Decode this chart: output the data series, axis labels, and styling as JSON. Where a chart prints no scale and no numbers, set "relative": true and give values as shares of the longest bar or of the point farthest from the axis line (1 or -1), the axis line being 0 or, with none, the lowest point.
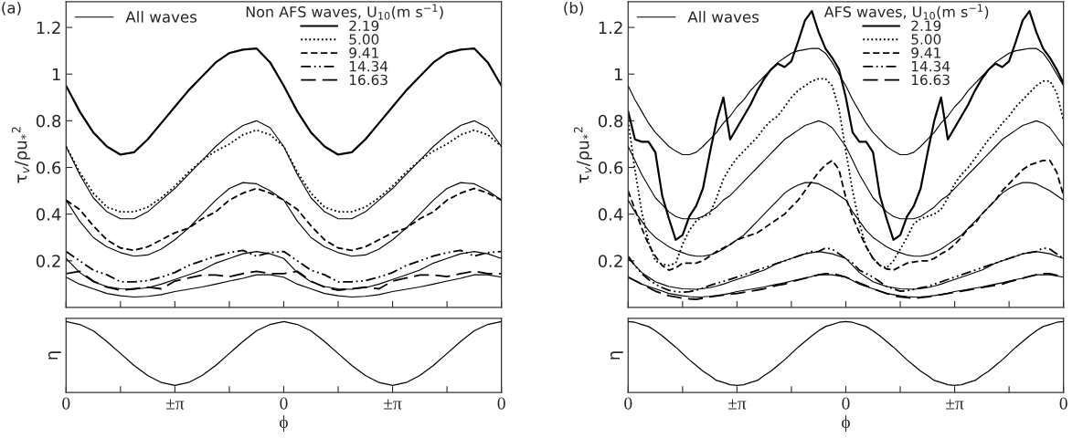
{
  "chart_data": [
    {
      "type": "line",
      "title": "(a)",
      "ylabel": "τ$_{v}$/ρu$_{*}$$^{2}$",
      "legend_title": "Non AFS waves, U$_{10}$(m s$^{−1}$)",
      "legend": "top",
      "categories": [
        null,
        null,
        null,
        null,
        null,
        null,
        null,
        null,
        null,
        null,
        null,
        null,
        null,
        null,
        null,
        null,
        null,
        null,
        null,
        null,
        null,
        null,
        null,
        null,
        null,
        null,
        null,
        null,
        null,
        null,
        null,
        null,
        null
      ],
      "ylim": [
        0,
        1.31
      ],
      "yticks": [
        0.2,
        0.4,
        0.6,
        0.8,
        1,
        1.2
      ],
      "tick_labels": "y",
      "series": [
        {
          "name": "All waves",
          "color": "#000000",
          "line_style": "solid",
          "values": [
            0.69,
            0.57,
            0.47,
            0.41,
            0.38,
            0.38,
            0.41,
            0.46,
            0.51,
            0.57,
            0.63,
            0.69,
            0.74,
            0.78,
            0.8,
            0.77,
            0.69,
            0.57,
            0.47,
            0.41,
            0.38,
            0.38,
            0.41,
            0.46,
            0.51,
            0.57,
            0.63,
            0.69,
            0.74,
            0.78,
            0.8,
            0.77,
            0.69
          ]
        },
        {
          "color": "#000000",
          "line_style": "solid",
          "values": [
            null,
            null,
            null,
            null,
            null,
            null,
            null,
            null,
            null,
            null,
            null,
            null,
            null,
            null,
            null,
            null,
            null,
            null,
            null,
            null,
            null,
            null,
            null,
            null,
            null,
            null,
            null,
            null,
            null,
            null,
            null,
            null,
            null
          ]
        },
        {
          "color": "#000000",
          "line_style": "solid",
          "values": [
            0.46,
            0.37,
            0.3,
            0.26,
            0.235,
            0.22,
            0.225,
            0.25,
            0.29,
            0.34,
            0.4,
            0.46,
            0.51,
            0.535,
            0.53,
            0.5,
            0.46,
            0.37,
            0.3,
            0.26,
            0.235,
            0.22,
            0.225,
            0.25,
            0.29,
            0.34,
            0.4,
            0.46,
            0.51,
            0.535,
            0.53,
            0.5,
            0.46
          ]
        },
        {
          "color": "#000000",
          "line_style": "solid",
          "values": [
            0.21,
            0.15,
            0.11,
            0.09,
            0.08,
            0.078,
            0.085,
            0.1,
            0.12,
            0.14,
            0.16,
            0.19,
            0.21,
            0.23,
            0.24,
            0.23,
            0.21,
            0.15,
            0.11,
            0.09,
            0.08,
            0.078,
            0.085,
            0.1,
            0.12,
            0.14,
            0.16,
            0.19,
            0.21,
            0.23,
            0.24,
            0.23,
            0.21
          ]
        },
        {
          "color": "#000000",
          "line_style": "solid",
          "values": [
            0.13,
            0.1,
            0.08,
            0.06,
            0.05,
            0.045,
            0.048,
            0.055,
            0.068,
            0.078,
            0.088,
            0.1,
            0.113,
            0.125,
            0.14,
            0.14,
            0.13,
            0.1,
            0.08,
            0.06,
            0.05,
            0.045,
            0.048,
            0.055,
            0.068,
            0.078,
            0.088,
            0.1,
            0.113,
            0.125,
            0.14,
            0.14,
            0.13
          ]
        },
        {
          "name": "2.19",
          "color": "#000000",
          "line_style": "solid",
          "values": [
            0.95,
            0.84,
            0.75,
            0.69,
            0.655,
            0.665,
            0.72,
            0.79,
            0.86,
            0.93,
            0.99,
            1.05,
            1.09,
            1.105,
            1.11,
            1.05,
            0.95,
            0.84,
            0.75,
            0.69,
            0.655,
            0.665,
            0.72,
            0.79,
            0.86,
            0.93,
            0.99,
            1.05,
            1.09,
            1.105,
            1.11,
            1.05,
            0.95
          ]
        },
        {
          "name": "5.00",
          "color": "#000000",
          "line_style": "dotted",
          "values": [
            0.69,
            0.58,
            0.49,
            0.43,
            0.41,
            0.41,
            0.43,
            0.47,
            0.52,
            0.58,
            0.63,
            0.67,
            0.7,
            0.74,
            0.76,
            0.74,
            0.69,
            0.58,
            0.49,
            0.43,
            0.41,
            0.41,
            0.43,
            0.47,
            0.52,
            0.58,
            0.63,
            0.67,
            0.7,
            0.74,
            0.76,
            0.74,
            0.69
          ]
        },
        {
          "name": "9.41",
          "color": "#000000",
          "line_style": "dashed",
          "values": [
            0.46,
            0.42,
            0.35,
            0.29,
            0.255,
            0.245,
            0.26,
            0.29,
            0.32,
            0.34,
            0.38,
            0.41,
            0.46,
            0.49,
            0.51,
            0.49,
            0.46,
            0.42,
            0.35,
            0.29,
            0.255,
            0.245,
            0.26,
            0.29,
            0.32,
            0.34,
            0.38,
            0.41,
            0.46,
            0.49,
            0.51,
            0.49,
            0.46
          ]
        },
        {
          "name": "14.34",
          "color": "#000000",
          "line_style": "dashdotdot",
          "values": [
            0.24,
            0.2,
            0.16,
            0.14,
            0.11,
            0.11,
            0.115,
            0.13,
            0.15,
            0.18,
            0.2,
            0.22,
            0.235,
            0.245,
            0.22,
            0.235,
            0.24,
            0.2,
            0.16,
            0.14,
            0.11,
            0.11,
            0.115,
            0.13,
            0.15,
            0.18,
            0.2,
            0.22,
            0.235,
            0.245,
            0.22,
            0.235,
            0.24
          ]
        },
        {
          "name": "16.63",
          "color": "#000000",
          "line_style": "longdash",
          "values": [
            0.145,
            0.155,
            0.113,
            0.087,
            0.074,
            0.08,
            0.087,
            0.08,
            0.113,
            0.126,
            0.139,
            0.139,
            0.132,
            0.145,
            0.155,
            0.145,
            0.145,
            0.155,
            0.113,
            0.087,
            0.074,
            0.08,
            0.087,
            0.08,
            0.113,
            0.126,
            0.139,
            0.139,
            0.132,
            0.145,
            0.155,
            0.145,
            0.145
          ]
        }
      ]
    },
    {
      "type": "line",
      "relative": true,
      "ylabel": "η",
      "xlabel": "ϕ",
      "categories": [
        "0",
        null,
        null,
        null,
        null,
        null,
        null,
        null,
        "±π",
        null,
        null,
        null,
        null,
        null,
        null,
        null,
        "0",
        null,
        null,
        null,
        null,
        null,
        null,
        null,
        "±π",
        null,
        null,
        null,
        null,
        null,
        null,
        null,
        "0"
      ],
      "tick_labels": "x",
      "series": [
        {
          "color": "#000000",
          "line_style": "solid",
          "values": [
            1,
            0.96,
            0.87,
            0.72,
            0.55,
            0.38,
            0.24,
            0.14,
            0.1,
            0.14,
            0.24,
            0.38,
            0.55,
            0.72,
            0.87,
            0.96,
            1,
            0.96,
            0.87,
            0.72,
            0.55,
            0.38,
            0.24,
            0.14,
            0.1,
            0.14,
            0.24,
            0.38,
            0.55,
            0.72,
            0.87,
            0.96,
            1
          ]
        }
      ]
    },
    {
      "type": "line",
      "title": "(b)",
      "ylabel": "τ$_{v}$/ρu$_{*}$$^{2}$",
      "legend_title": "AFS waves, U$_{10}$(m s$^{−1}$)",
      "legend": "top",
      "categories": [
        null,
        null,
        null,
        null,
        null,
        null,
        null,
        null,
        null,
        null,
        null,
        null,
        null,
        null,
        null,
        null,
        null,
        null,
        null,
        null,
        null,
        null,
        null,
        null,
        null,
        null,
        null,
        null,
        null,
        null,
        null,
        null,
        null,
        null,
        null,
        null,
        null,
        null,
        null,
        null,
        null,
        null,
        null,
        null,
        null,
        null,
        null,
        null,
        null,
        null,
        null,
        null,
        null,
        null,
        null,
        null,
        null,
        null,
        null,
        null,
        null,
        null,
        null,
        null,
        null
      ],
      "ylim": [
        0,
        1.31
      ],
      "yticks": [
        0.2,
        0.4,
        0.6,
        0.8,
        1,
        1.2
      ],
      "tick_labels": "y",
      "series": [
        {
          "name": "All waves",
          "color": "#000000",
          "line_style": "solid",
          "values": [
            0.95,
            0.89,
            0.84,
            0.79,
            0.75,
            0.72,
            0.69,
            0.67,
            0.655,
            0.655,
            0.665,
            0.69,
            0.72,
            0.75,
            0.79,
            0.82,
            0.86,
            0.89,
            0.93,
            0.96,
            0.99,
            1.02,
            1.05,
            1.07,
            1.09,
            1.1,
            1.105,
            1.11,
            1.11,
            1.09,
            1.05,
            1.0,
            0.95,
            0.89,
            0.84,
            0.79,
            0.75,
            0.72,
            0.69,
            0.67,
            0.655,
            0.655,
            0.665,
            0.69,
            0.72,
            0.75,
            0.79,
            0.82,
            0.86,
            0.89,
            0.93,
            0.96,
            0.99,
            1.02,
            1.05,
            1.07,
            1.09,
            1.1,
            1.105,
            1.11,
            1.11,
            1.09,
            1.05,
            1.0,
            0.95
          ]
        },
        {
          "color": "#000000",
          "line_style": "solid",
          "values": [
            0.69,
            0.63,
            0.57,
            0.52,
            0.47,
            0.44,
            0.41,
            0.39,
            0.38,
            0.38,
            0.38,
            0.39,
            0.41,
            0.43,
            0.46,
            0.48,
            0.51,
            0.54,
            0.57,
            0.6,
            0.63,
            0.66,
            0.69,
            0.72,
            0.74,
            0.76,
            0.78,
            0.79,
            0.8,
            0.79,
            0.77,
            0.73,
            0.69,
            0.63,
            0.57,
            0.52,
            0.47,
            0.44,
            0.41,
            0.39,
            0.38,
            0.38,
            0.38,
            0.39,
            0.41,
            0.43,
            0.46,
            0.48,
            0.51,
            0.54,
            0.57,
            0.6,
            0.63,
            0.66,
            0.69,
            0.72,
            0.74,
            0.76,
            0.78,
            0.79,
            0.8,
            0.79,
            0.77,
            0.73,
            0.69
          ]
        },
        {
          "color": "#000000",
          "line_style": "solid",
          "values": [
            0.46,
            0.41,
            0.37,
            0.33,
            0.3,
            0.28,
            0.26,
            0.245,
            0.235,
            0.225,
            0.22,
            0.22,
            0.225,
            0.235,
            0.25,
            0.27,
            0.29,
            0.31,
            0.34,
            0.37,
            0.4,
            0.43,
            0.46,
            0.49,
            0.51,
            0.525,
            0.535,
            0.535,
            0.53,
            0.515,
            0.5,
            0.48,
            0.46,
            0.41,
            0.37,
            0.33,
            0.3,
            0.28,
            0.26,
            0.245,
            0.235,
            0.225,
            0.22,
            0.22,
            0.225,
            0.235,
            0.25,
            0.27,
            0.29,
            0.31,
            0.34,
            0.37,
            0.4,
            0.43,
            0.46,
            0.49,
            0.51,
            0.525,
            0.535,
            0.535,
            0.53,
            0.515,
            0.5,
            0.48,
            0.46
          ]
        },
        {
          "color": "#000000",
          "line_style": "solid",
          "values": [
            0.21,
            0.18,
            0.15,
            0.13,
            0.11,
            0.1,
            0.09,
            0.085,
            0.08,
            0.079,
            0.078,
            0.081,
            0.085,
            0.092,
            0.1,
            0.11,
            0.12,
            0.13,
            0.14,
            0.15,
            0.16,
            0.175,
            0.19,
            0.2,
            0.21,
            0.22,
            0.23,
            0.235,
            0.24,
            0.235,
            0.23,
            0.22,
            0.21,
            0.18,
            0.15,
            0.13,
            0.11,
            0.1,
            0.09,
            0.085,
            0.08,
            0.079,
            0.078,
            0.081,
            0.085,
            0.092,
            0.1,
            0.11,
            0.12,
            0.13,
            0.14,
            0.15,
            0.16,
            0.175,
            0.19,
            0.2,
            0.21,
            0.22,
            0.23,
            0.235,
            0.24,
            0.235,
            0.23,
            0.22,
            0.21
          ]
        },
        {
          "color": "#000000",
          "line_style": "solid",
          "values": [
            0.13,
            0.115,
            0.1,
            0.09,
            0.08,
            0.07,
            0.06,
            0.055,
            0.05,
            0.047,
            0.045,
            0.046,
            0.048,
            0.051,
            0.055,
            0.061,
            0.068,
            0.073,
            0.078,
            0.083,
            0.088,
            0.094,
            0.1,
            0.106,
            0.113,
            0.12,
            0.125,
            0.133,
            0.14,
            0.14,
            0.14,
            0.135,
            0.13,
            0.115,
            0.1,
            0.09,
            0.08,
            0.07,
            0.06,
            0.055,
            0.05,
            0.047,
            0.045,
            0.046,
            0.048,
            0.051,
            0.055,
            0.061,
            0.068,
            0.073,
            0.078,
            0.083,
            0.088,
            0.094,
            0.1,
            0.106,
            0.113,
            0.12,
            0.125,
            0.133,
            0.14,
            0.14,
            0.14,
            0.135,
            0.13
          ]
        },
        {
          "name": "2.19",
          "color": "#000000",
          "line_style": "solid",
          "values": [
            0.84,
            0.72,
            0.71,
            0.71,
            0.665,
            0.48,
            0.38,
            0.29,
            0.31,
            0.39,
            0.435,
            0.51,
            0.66,
            0.8,
            0.9,
            0.72,
            0.77,
            0.82,
            0.87,
            0.93,
            0.98,
            1.02,
            1.045,
            1.03,
            1.055,
            1.14,
            1.23,
            1.27,
            1.18,
            1.11,
            1.07,
            1.02,
            0.9,
            0.75,
            0.71,
            0.71,
            0.665,
            0.48,
            0.38,
            0.29,
            0.31,
            0.39,
            0.435,
            0.51,
            0.66,
            0.8,
            0.9,
            0.72,
            0.77,
            0.82,
            0.87,
            0.93,
            0.98,
            1.02,
            1.045,
            1.03,
            1.055,
            1.14,
            1.23,
            1.27,
            1.18,
            1.11,
            1.07,
            1.02,
            0.96
          ]
        },
        {
          "name": "5.00",
          "color": "#000000",
          "line_style": "dotted",
          "values": [
            0.8,
            0.59,
            0.41,
            0.28,
            0.2,
            0.185,
            0.18,
            0.19,
            0.27,
            0.33,
            0.37,
            0.39,
            0.4,
            0.47,
            0.55,
            0.6,
            0.64,
            0.67,
            0.7,
            0.73,
            0.77,
            0.8,
            0.82,
            0.86,
            0.9,
            0.93,
            0.95,
            0.97,
            0.98,
            0.98,
            0.95,
            0.85,
            0.67,
            0.5,
            0.36,
            0.26,
            0.21,
            0.18,
            0.17,
            0.2,
            0.25,
            0.3,
            0.36,
            0.38,
            0.39,
            0.4,
            0.42,
            0.47,
            0.53,
            0.57,
            0.6,
            0.64,
            0.68,
            0.72,
            0.75,
            0.79,
            0.82,
            0.86,
            0.89,
            0.92,
            0.95,
            0.97,
            0.97,
            0.92,
            0.8
          ]
        },
        {
          "name": "9.41",
          "color": "#000000",
          "line_style": "dashed",
          "values": [
            0.5,
            0.42,
            0.34,
            0.27,
            0.22,
            0.18,
            0.16,
            0.17,
            0.19,
            0.19,
            0.19,
            0.2,
            0.22,
            0.24,
            0.255,
            0.27,
            0.29,
            0.3,
            0.31,
            0.32,
            0.34,
            0.36,
            0.38,
            0.4,
            0.43,
            0.46,
            0.5,
            0.54,
            0.58,
            0.61,
            0.63,
            0.59,
            0.47,
            0.39,
            0.32,
            0.26,
            0.21,
            0.18,
            0.165,
            0.16,
            0.175,
            0.19,
            0.195,
            0.2,
            0.2,
            0.21,
            0.23,
            0.245,
            0.27,
            0.3,
            0.34,
            0.36,
            0.4,
            0.43,
            0.46,
            0.5,
            0.53,
            0.56,
            0.59,
            0.61,
            0.62,
            0.63,
            0.63,
            0.58,
            0.48
          ]
        },
        {
          "name": "14.34",
          "color": "#000000",
          "line_style": "dashdotdot",
          "values": [
            0.22,
            0.18,
            0.145,
            0.12,
            0.1,
            0.085,
            0.074,
            0.068,
            0.065,
            0.068,
            0.074,
            0.083,
            0.094,
            0.103,
            0.112,
            0.121,
            0.13,
            0.14,
            0.15,
            0.16,
            0.17,
            0.18,
            0.19,
            0.2,
            0.21,
            0.22,
            0.23,
            0.24,
            0.24,
            0.255,
            0.25,
            0.23,
            0.21,
            0.19,
            0.16,
            0.145,
            0.13,
            0.11,
            0.09,
            0.08,
            0.07,
            0.072,
            0.078,
            0.084,
            0.09,
            0.1,
            0.11,
            0.12,
            0.13,
            0.14,
            0.15,
            0.16,
            0.17,
            0.18,
            0.19,
            0.2,
            0.21,
            0.22,
            0.23,
            0.235,
            0.24,
            0.255,
            0.25,
            0.23,
            0.21
          ]
        },
        {
          "name": "16.63",
          "color": "#000000",
          "line_style": "longdash",
          "values": [
            0.13,
            0.115,
            0.1,
            0.085,
            0.07,
            0.06,
            0.05,
            0.045,
            0.04,
            0.037,
            0.035,
            0.04,
            0.045,
            0.049,
            0.053,
            0.057,
            0.06,
            0.065,
            0.07,
            0.075,
            0.08,
            0.088,
            0.095,
            0.1,
            0.11,
            0.118,
            0.125,
            0.133,
            0.14,
            0.145,
            0.145,
            0.138,
            0.13,
            0.118,
            0.105,
            0.093,
            0.08,
            0.07,
            0.06,
            0.05,
            0.045,
            0.042,
            0.04,
            0.042,
            0.045,
            0.05,
            0.055,
            0.06,
            0.065,
            0.07,
            0.075,
            0.08,
            0.085,
            0.09,
            0.095,
            0.1,
            0.11,
            0.118,
            0.125,
            0.133,
            0.14,
            0.145,
            0.145,
            0.138,
            0.13
          ]
        }
      ]
    },
    {
      "type": "line",
      "relative": true,
      "ylabel": "η",
      "xlabel": "ϕ",
      "categories": [
        "0",
        null,
        null,
        null,
        null,
        null,
        null,
        null,
        null,
        null,
        null,
        null,
        null,
        null,
        null,
        null,
        "±π",
        null,
        null,
        null,
        null,
        null,
        null,
        null,
        null,
        null,
        null,
        null,
        null,
        null,
        null,
        null,
        "0",
        null,
        null,
        null,
        null,
        null,
        null,
        null,
        null,
        null,
        null,
        null,
        null,
        null,
        null,
        null,
        "±π",
        null,
        null,
        null,
        null,
        null,
        null,
        null,
        null,
        null,
        null,
        null,
        null,
        null,
        null,
        null,
        "0"
      ],
      "tick_labels": "x",
      "series": [
        {
          "color": "#000000",
          "line_style": "solid",
          "values": [
            1,
            0.99,
            0.96,
            0.93,
            0.87,
            0.8,
            0.72,
            0.64,
            0.55,
            0.46,
            0.38,
            0.3,
            0.24,
            0.17,
            0.14,
            0.11,
            0.1,
            0.11,
            0.14,
            0.17,
            0.24,
            0.3,
            0.38,
            0.46,
            0.55,
            0.64,
            0.72,
            0.8,
            0.87,
            0.93,
            0.96,
            0.99,
            1,
            0.99,
            0.96,
            0.93,
            0.87,
            0.8,
            0.72,
            0.64,
            0.55,
            0.46,
            0.38,
            0.3,
            0.24,
            0.17,
            0.14,
            0.11,
            0.1,
            0.11,
            0.14,
            0.17,
            0.24,
            0.3,
            0.38,
            0.46,
            0.55,
            0.64,
            0.72,
            0.8,
            0.87,
            0.93,
            0.96,
            0.99,
            1
          ]
        }
      ]
    }
  ]
}
